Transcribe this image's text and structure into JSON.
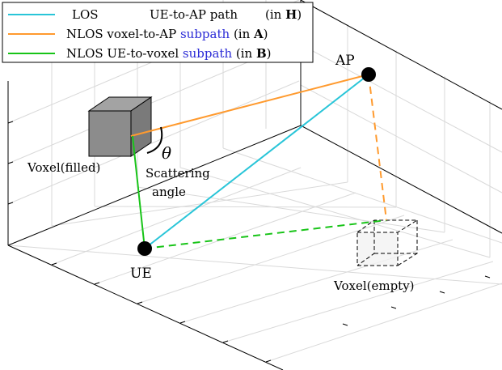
{
  "legend": {
    "items": [
      {
        "key": "LOS",
        "desc": "UE-to-AP path",
        "paren_open": "(in ",
        "matrix": "H",
        "paren_close": ")",
        "color": "#29c5d8"
      },
      {
        "key": "NLOS voxel-to-AP",
        "highlight": "subpath",
        "paren_open": "(in ",
        "matrix": "A",
        "paren_close": ")",
        "color": "#ff9a2e"
      },
      {
        "key": "NLOS UE-to-voxel",
        "highlight": "subpath",
        "paren_open": "(in ",
        "matrix": "B",
        "paren_close": ")",
        "color": "#18c418"
      }
    ],
    "highlight_color": "#2b2bd6"
  },
  "labels": {
    "ap": "AP",
    "ue": "UE",
    "voxel_filled": "Voxel(filled)",
    "voxel_empty": "Voxel(empty)",
    "theta": "θ",
    "scattering_line1": "Scattering",
    "scattering_line2": "angle"
  },
  "colors": {
    "los": "#29c5d8",
    "nlos_voxel_ap": "#ff9a2e",
    "nlos_ue_voxel": "#18c418",
    "filled_voxel": "#8c8c8c",
    "node": "#000000"
  }
}
